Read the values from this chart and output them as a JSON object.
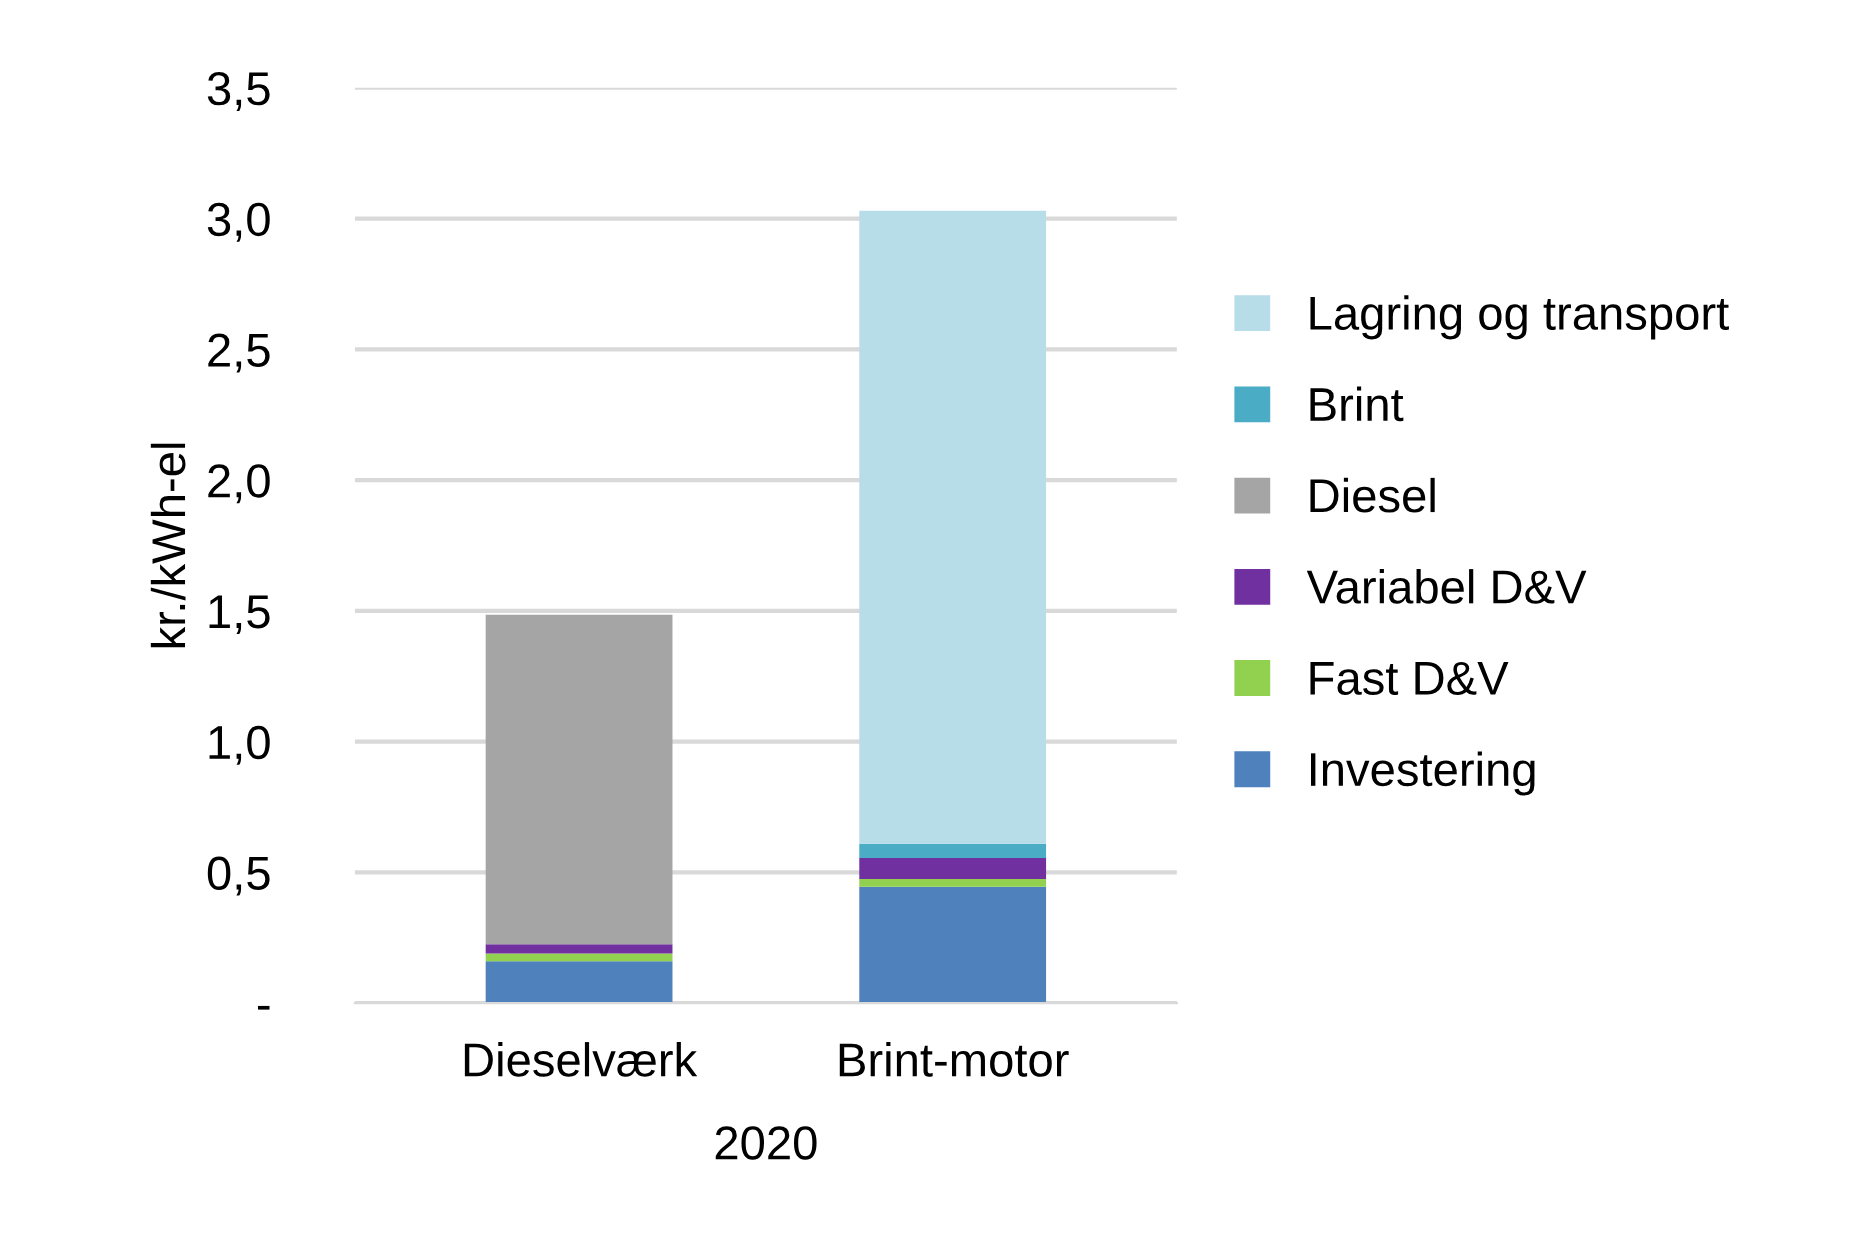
{
  "chart_data": {
    "type": "bar",
    "stacked": true,
    "ylabel": "kr./kWh-el",
    "xlabel": "2020",
    "categories": [
      "Dieselværk",
      "Brint-motor"
    ],
    "series": [
      {
        "name": "Investering",
        "color": "#4f81bd",
        "values": [
          0.16,
          0.445
        ]
      },
      {
        "name": "Fast D&V",
        "color": "#92d050",
        "values": [
          0.03,
          0.03
        ]
      },
      {
        "name": "Variabel D&V",
        "color": "#7030a0",
        "values": [
          0.035,
          0.08
        ]
      },
      {
        "name": "Diesel",
        "color": "#a5a5a5",
        "values": [
          1.26,
          0
        ]
      },
      {
        "name": "Brint",
        "color": "#4bacc6",
        "values": [
          0,
          0.055
        ]
      },
      {
        "name": "Lagring og transport",
        "color": "#b7dde8",
        "values": [
          0,
          2.42
        ]
      }
    ],
    "ylim": [
      0,
      3.5
    ],
    "yticks": [
      {
        "value": 0,
        "label": "-"
      },
      {
        "value": 0.5,
        "label": "0,5"
      },
      {
        "value": 1,
        "label": "1,0"
      },
      {
        "value": 1.5,
        "label": "1,5"
      },
      {
        "value": 2,
        "label": "2,0"
      },
      {
        "value": 2.5,
        "label": "2,5"
      },
      {
        "value": 3,
        "label": "3,0"
      },
      {
        "value": 3.5,
        "label": "3,5"
      }
    ],
    "grid": "y",
    "legend": "right"
  }
}
